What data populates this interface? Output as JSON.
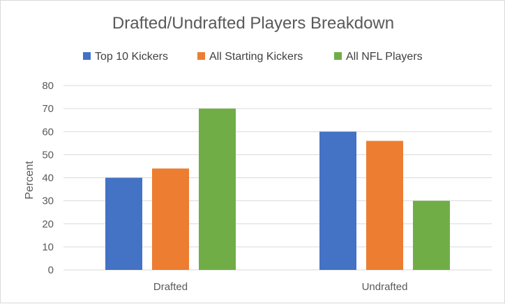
{
  "chart_data": {
    "type": "bar",
    "title": "Drafted/Undrafted Players Breakdown",
    "xlabel": "",
    "ylabel": "Percent",
    "categories": [
      "Drafted",
      "Undrafted"
    ],
    "series": [
      {
        "name": "Top 10 Kickers",
        "color": "#4472c4",
        "values": [
          40,
          60
        ]
      },
      {
        "name": "All Starting Kickers",
        "color": "#ed7d31",
        "values": [
          44,
          56
        ]
      },
      {
        "name": "All NFL Players",
        "color": "#70ad47",
        "values": [
          70,
          30
        ]
      }
    ],
    "ylim": [
      0,
      80
    ],
    "yticks": [
      0,
      10,
      20,
      30,
      40,
      50,
      60,
      70,
      80
    ],
    "grid": true,
    "legend_position": "top"
  },
  "colors": {
    "gridline": "#d9d9d9",
    "text": "#595959"
  }
}
